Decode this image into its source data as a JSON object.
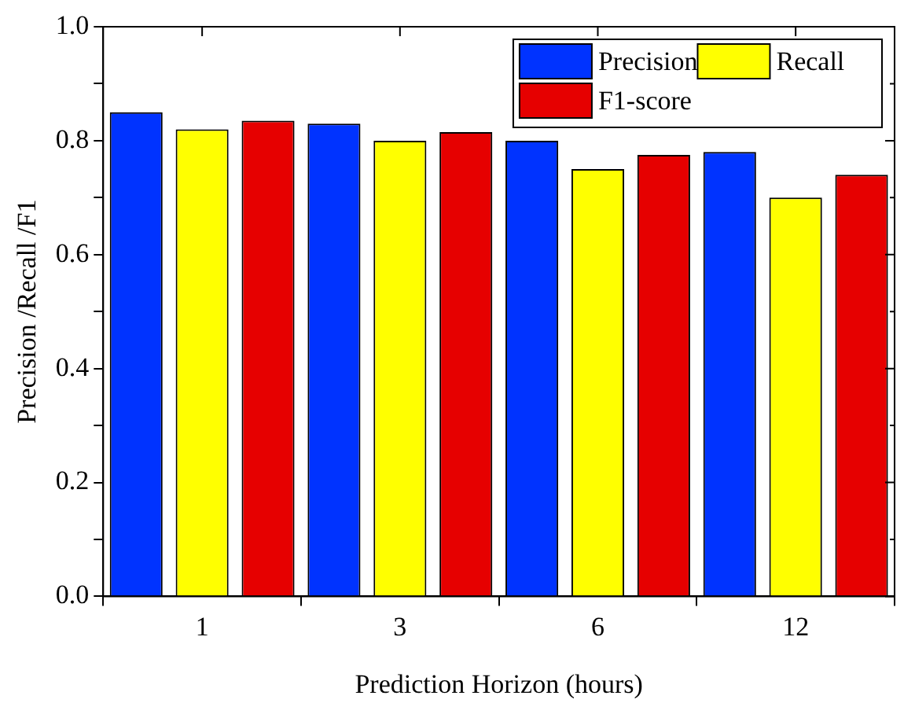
{
  "chart_data": {
    "type": "bar",
    "xlabel": "Prediction Horizon (hours)",
    "ylabel": "Precision /Recall /F1",
    "categories": [
      "1",
      "3",
      "6",
      "12"
    ],
    "series": [
      {
        "name": "Precision",
        "color": "#0033ff",
        "values": [
          0.85,
          0.83,
          0.8,
          0.78
        ]
      },
      {
        "name": "Recall",
        "color": "#ffff00",
        "values": [
          0.82,
          0.8,
          0.75,
          0.7
        ]
      },
      {
        "name": "F1-score",
        "color": "#e60000",
        "values": [
          0.835,
          0.815,
          0.775,
          0.74
        ]
      }
    ],
    "ylim": [
      0,
      1.0
    ],
    "yticks": [
      {
        "value": 0,
        "label": "0.0"
      },
      {
        "value": 0.1,
        "label": null
      },
      {
        "value": 0.2,
        "label": "0.2"
      },
      {
        "value": 0.3,
        "label": null
      },
      {
        "value": 0.4,
        "label": "0.4"
      },
      {
        "value": 0.5,
        "label": null
      },
      {
        "value": 0.6,
        "label": "0.6"
      },
      {
        "value": 0.7,
        "label": null
      },
      {
        "value": 0.8,
        "label": "0.8"
      },
      {
        "value": 0.9,
        "label": null
      },
      {
        "value": 1.0,
        "label": "1.0"
      }
    ],
    "grid": false,
    "legend": "top right"
  }
}
